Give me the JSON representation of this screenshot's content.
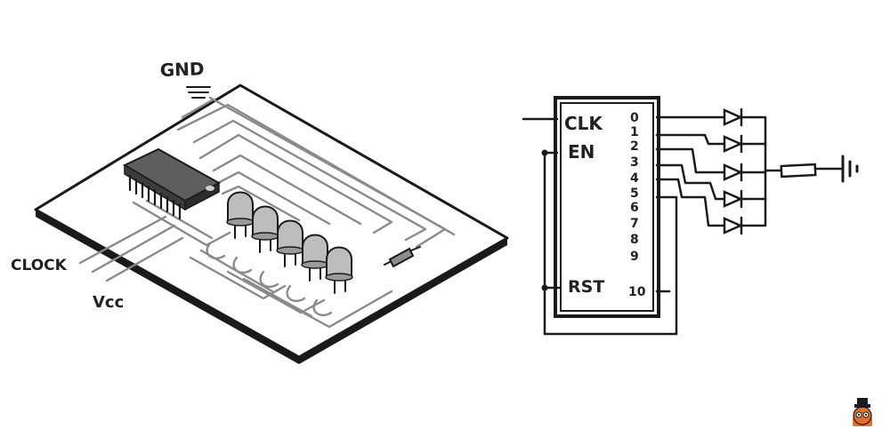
{
  "board": {
    "gnd_label": "GND",
    "clock_label": "CLOCK",
    "vcc_label": "Vcc"
  },
  "schematic": {
    "pin_clk": "CLK",
    "pin_en": "EN",
    "pin_rst": "RST",
    "outputs": [
      "0",
      "1",
      "2",
      "3",
      "4",
      "5",
      "6",
      "7",
      "8",
      "9"
    ],
    "pin_10": "10"
  },
  "colors": {
    "ink": "#1a1a1a",
    "trace": "#8a8a8a",
    "led": "#bdbdbd",
    "chip": "#6f6f6f",
    "mascot": "#e0702a"
  }
}
